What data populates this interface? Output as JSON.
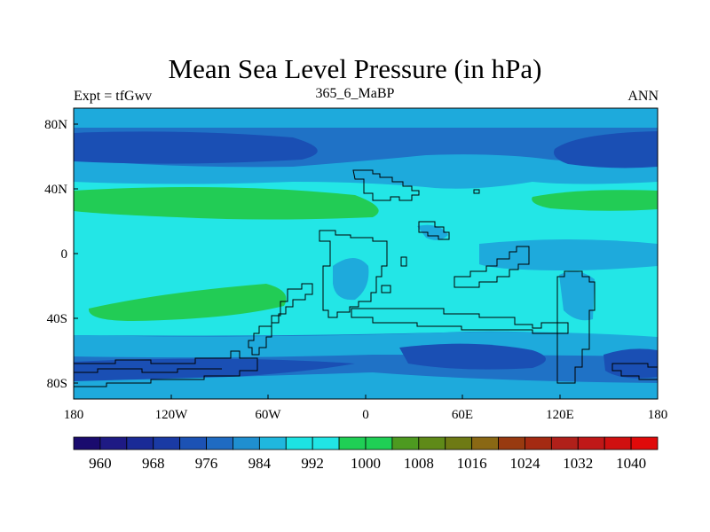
{
  "title": "Mean Sea Level Pressure (in hPa)",
  "left_label": "Expt = tfGwv",
  "center_label": "365_6_MaBP",
  "right_label": "ANN",
  "map": {
    "lon_ticks": [
      "180",
      "120W",
      "60W",
      "0",
      "60E",
      "120E",
      "180"
    ],
    "lat_ticks": [
      "80N",
      "40N",
      "0",
      "40S",
      "80S"
    ]
  },
  "colorbar": {
    "colors": [
      "#1a0b6e",
      "#1e1a84",
      "#1a2a96",
      "#1a3aa4",
      "#1c52b4",
      "#1f6bc2",
      "#1f8fd0",
      "#1fb7de",
      "#1de3e3",
      "#21e5e5",
      "#1fcf55",
      "#1fcf55",
      "#4d9a20",
      "#5f8a18",
      "#6e7a14",
      "#8a6814",
      "#983a10",
      "#a42a12",
      "#b0201a",
      "#c01818",
      "#d01010",
      "#e00a0a"
    ],
    "labels": [
      "960",
      "968",
      "976",
      "984",
      "992",
      "1000",
      "1008",
      "1016",
      "1024",
      "1032",
      "1040"
    ]
  },
  "palette": {
    "deep_blue": "#1a4fb4",
    "mid_blue": "#1f72c6",
    "light_blue": "#1eaadc",
    "cyan": "#23e6e6",
    "green": "#22cc55",
    "coast": "#000000"
  }
}
